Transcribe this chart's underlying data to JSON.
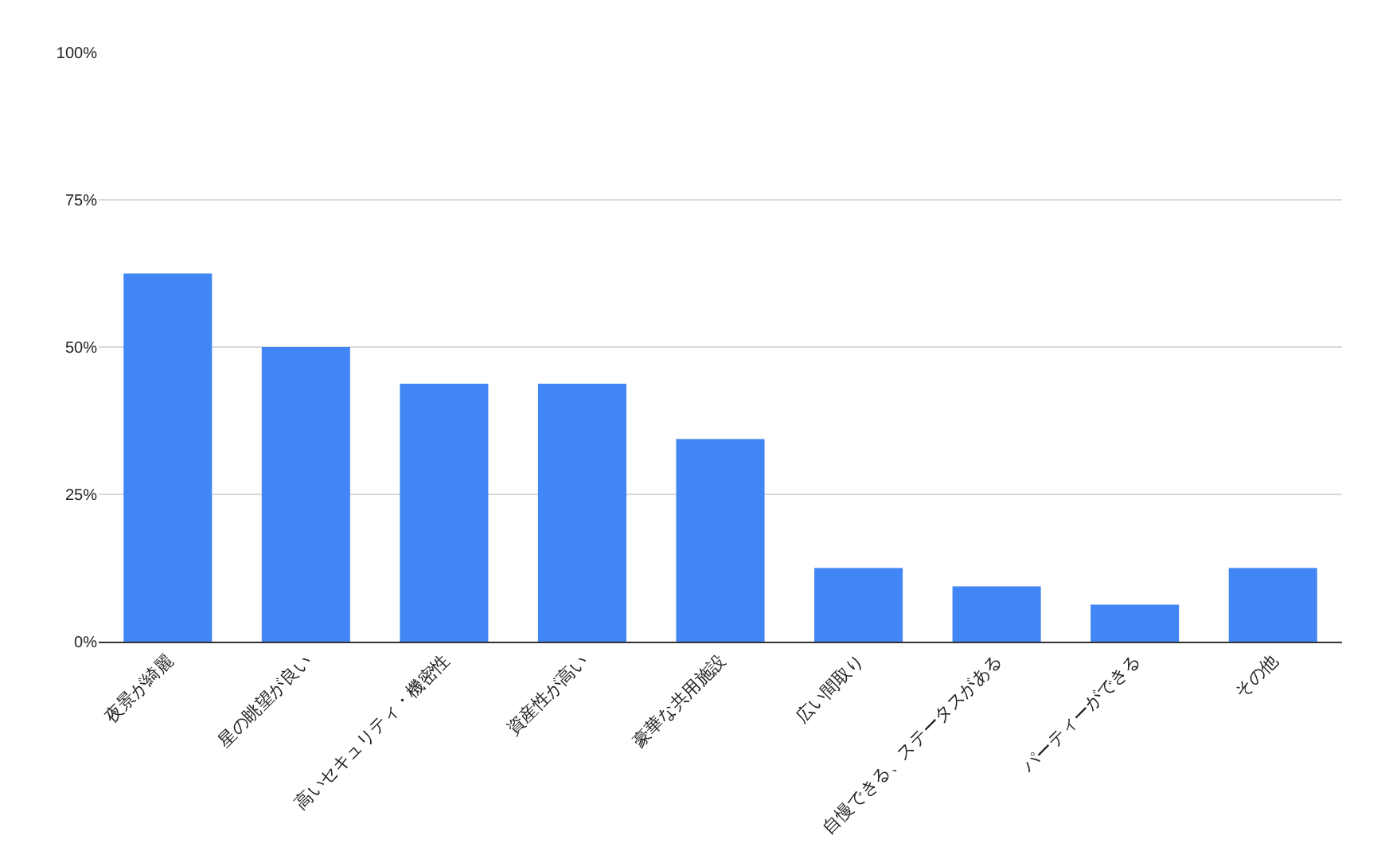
{
  "chart_data": {
    "type": "bar",
    "categories": [
      "夜景が綺麗",
      "星の眺望が良い",
      "高いセキュリティ・機密性",
      "資産性が高い",
      "豪華な共用施設",
      "広い間取り",
      "自慢できる、ステータスがある",
      "パーティーができる",
      "その他"
    ],
    "values": [
      62.5,
      50,
      43.8,
      43.8,
      34.4,
      12.5,
      9.4,
      6.3,
      12.5
    ],
    "color": "#4285f4",
    "ylim": [
      0,
      100
    ],
    "yticks": [
      {
        "value": 0,
        "label": "0%"
      },
      {
        "value": 25,
        "label": "25%"
      },
      {
        "value": 50,
        "label": "50%"
      },
      {
        "value": 75,
        "label": "75%"
      },
      {
        "value": 100,
        "label": "100%"
      }
    ],
    "grid": "y",
    "legend": false
  }
}
